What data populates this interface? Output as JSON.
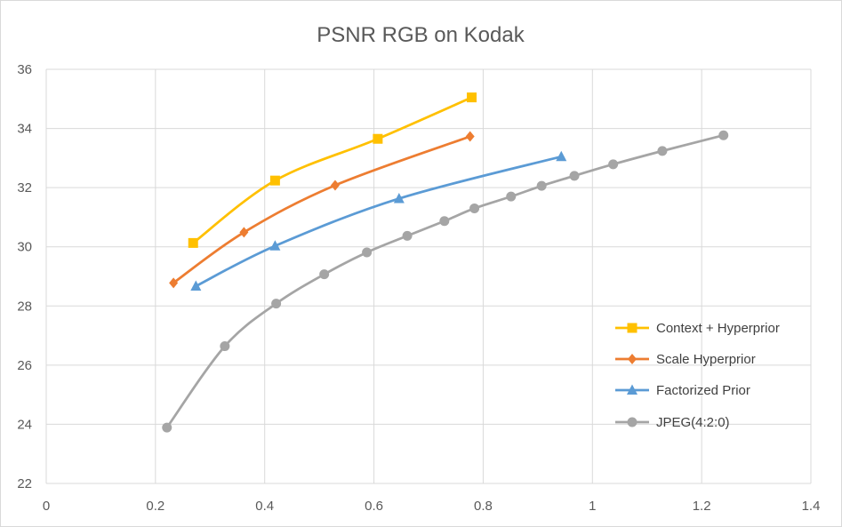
{
  "chart_data": {
    "type": "line",
    "title": "PSNR RGB on Kodak",
    "xlabel": "",
    "ylabel": "",
    "xlim": [
      0,
      1.4
    ],
    "ylim": [
      22,
      36
    ],
    "x_ticks": [
      "0",
      "0.2",
      "0.4",
      "0.6",
      "0.8",
      "1",
      "1.2",
      "1.4"
    ],
    "y_ticks": [
      "22",
      "24",
      "26",
      "28",
      "30",
      "32",
      "34",
      "36"
    ],
    "grid": true,
    "legend_position": "bottom-right",
    "series": [
      {
        "name": "Context + Hyperprior",
        "color": "#ffc000",
        "marker": "square",
        "points": [
          [
            0.269,
            30.13
          ],
          [
            0.419,
            32.24
          ],
          [
            0.607,
            33.65
          ],
          [
            0.779,
            35.05
          ]
        ]
      },
      {
        "name": "Scale Hyperprior",
        "color": "#ed7d31",
        "marker": "diamond",
        "points": [
          [
            0.233,
            28.78
          ],
          [
            0.362,
            30.49
          ],
          [
            0.529,
            32.08
          ],
          [
            0.776,
            33.73
          ]
        ]
      },
      {
        "name": "Factorized Prior",
        "color": "#5b9bd5",
        "marker": "triangle",
        "points": [
          [
            0.274,
            28.67
          ],
          [
            0.419,
            30.03
          ],
          [
            0.646,
            31.63
          ],
          [
            0.943,
            33.05
          ]
        ]
      },
      {
        "name": "JPEG(4:2:0)",
        "color": "#a5a5a5",
        "marker": "circle",
        "points": [
          [
            0.221,
            23.89
          ],
          [
            0.327,
            26.64
          ],
          [
            0.421,
            28.08
          ],
          [
            0.509,
            29.07
          ],
          [
            0.587,
            29.81
          ],
          [
            0.661,
            30.37
          ],
          [
            0.729,
            30.87
          ],
          [
            0.784,
            31.3
          ],
          [
            0.851,
            31.7
          ],
          [
            0.907,
            32.06
          ],
          [
            0.967,
            32.4
          ],
          [
            1.038,
            32.79
          ],
          [
            1.128,
            33.24
          ],
          [
            1.24,
            33.77
          ]
        ]
      }
    ]
  }
}
